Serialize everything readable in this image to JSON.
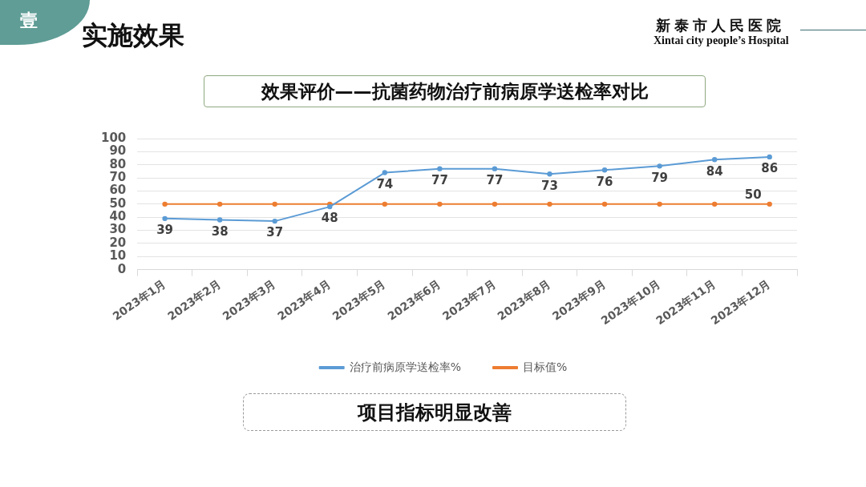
{
  "chart_data": {
    "type": "line",
    "title": "效果评价——抗菌药物治疗前病原学送检率对比",
    "annotations": [
      "壹",
      "实施效果",
      "新泰市人民医院",
      "Xintai city people’s Hospital",
      "项目指标明显改善"
    ],
    "categories": [
      "2023年1月",
      "2023年2月",
      "2023年3月",
      "2023年4月",
      "2023年5月",
      "2023年6月",
      "2023年7月",
      "2023年8月",
      "2023年9月",
      "2023年10月",
      "2023年11月",
      "2023年12月"
    ],
    "series": [
      {
        "name": "治疗前病原学送检率%",
        "color": "#5b9bd5",
        "values": [
          39,
          38,
          37,
          48,
          74,
          77,
          77,
          73,
          76,
          79,
          84,
          86
        ],
        "value_labels": [
          "39",
          "38",
          "37",
          "48",
          "74",
          "77",
          "77",
          "73",
          "76",
          "79",
          "84",
          "86"
        ]
      },
      {
        "name": "目标值%",
        "color": "#ed7d31",
        "values": [
          50,
          50,
          50,
          50,
          50,
          50,
          50,
          50,
          50,
          50,
          50,
          50
        ],
        "value_labels": [
          null,
          null,
          null,
          null,
          null,
          null,
          null,
          null,
          null,
          null,
          null,
          "50"
        ]
      }
    ],
    "ylim": [
      0,
      100
    ],
    "yticks": [
      0,
      10,
      20,
      30,
      40,
      50,
      60,
      70,
      80,
      90,
      100
    ],
    "grid": "y",
    "legend": "bottom",
    "marker": "circle"
  }
}
